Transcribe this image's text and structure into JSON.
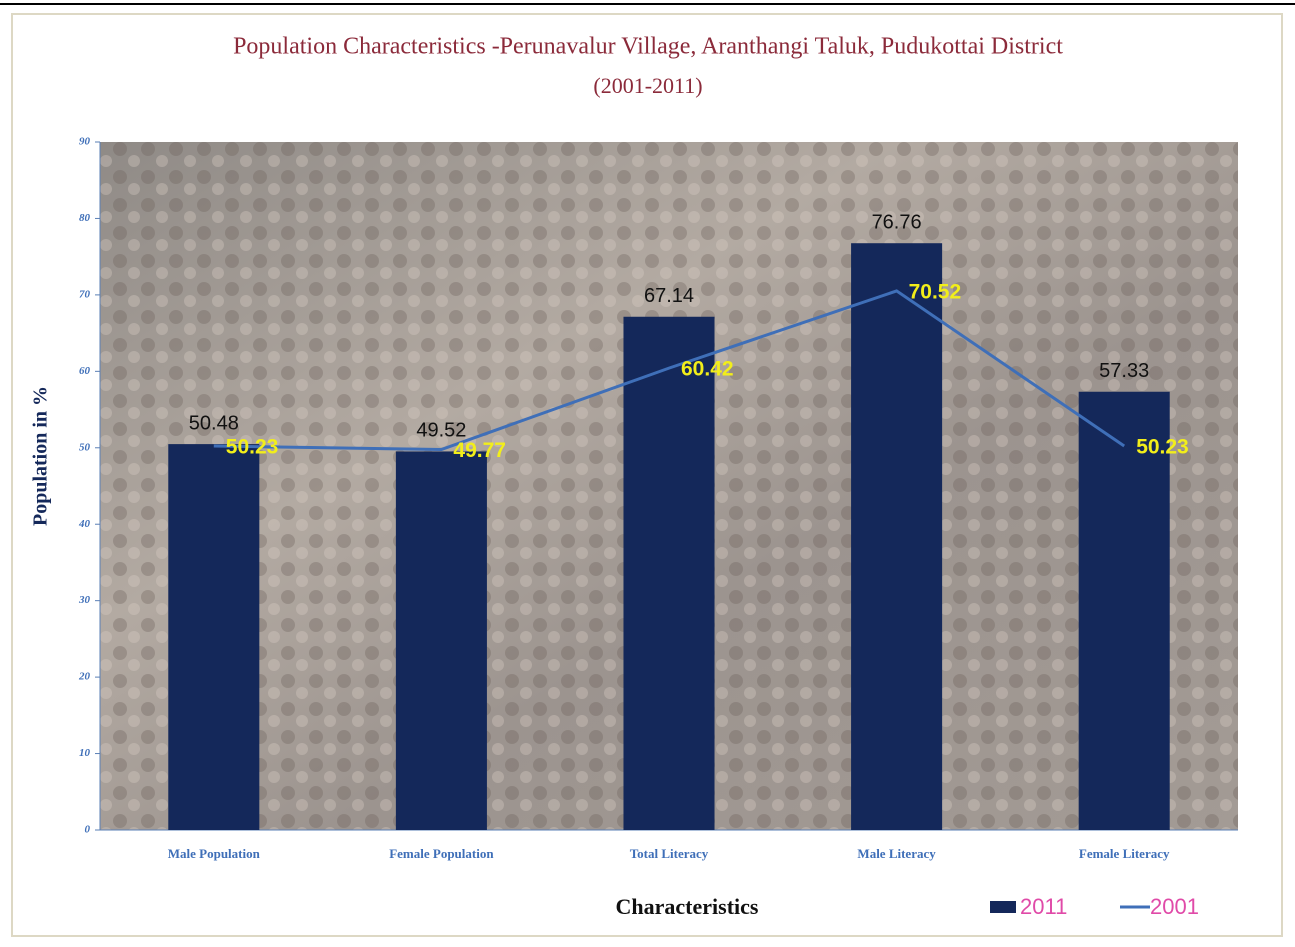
{
  "chart_data": {
    "type": "bar",
    "title": "Population Characteristics -Perunavalur Village, Aranthangi Taluk,  Pudukottai District",
    "subtitle": "(2001-2011)",
    "x_label": "Characteristics",
    "y_label": "Population in %",
    "categories": [
      "Male Population",
      "Female Population",
      "Total Literacy",
      "Male Literacy",
      "Female Literacy"
    ],
    "series": [
      {
        "name": "2011",
        "type": "bar",
        "color": "#14285a",
        "label_color": "#111111",
        "values": [
          50.48,
          49.52,
          67.14,
          76.76,
          57.33
        ]
      },
      {
        "name": "2001",
        "type": "line",
        "color": "#3f6fb8",
        "label_color": "#f2ee1a",
        "values": [
          50.23,
          49.77,
          60.42,
          70.52,
          50.23
        ]
      }
    ],
    "ylim": [
      0,
      90
    ],
    "yticks": [
      0,
      10,
      20,
      30,
      40,
      50,
      60,
      70,
      80,
      90
    ],
    "legend": "bottom-right"
  }
}
